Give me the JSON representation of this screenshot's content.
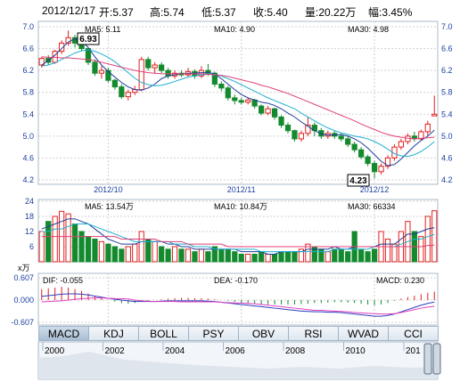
{
  "header": {
    "date": "2012/12/17",
    "open": "开:5.37",
    "high": "高:5.74",
    "low": "低:5.37",
    "close": "收:5.40",
    "volume": "量:20.22万",
    "change": "幅:3.45%"
  },
  "price_panel": {
    "ma5": "MA5: 5.11",
    "ma10": "MA10: 4.90",
    "ma30": "MA30: 4.98",
    "high_marker": "6.93",
    "low_marker": "4.23",
    "y_ticks": [
      "7.0",
      "6.6",
      "6.2",
      "5.8",
      "5.4",
      "5.0",
      "4.6",
      "4.2"
    ],
    "x_ticks": [
      "2012/10",
      "2012/11",
      "2012/12"
    ]
  },
  "volume_panel": {
    "ma5": "MA5: 13.54万",
    "ma10": "MA10: 10.84万",
    "ma30": "MA30: 66334",
    "unit": "x万",
    "y_ticks": [
      "24",
      "18",
      "12",
      "6"
    ]
  },
  "macd_panel": {
    "dif": "DIF: -0.055",
    "dea": "DEA: -0.170",
    "macd": "MACD: 0.230",
    "y_ticks": [
      "0.607",
      "0.000",
      "-0.607"
    ]
  },
  "tabs": [
    "MACD",
    "KDJ",
    "BOLL",
    "PSY",
    "OBV",
    "RSI",
    "WVAD",
    "CCI"
  ],
  "active_tab": "MACD",
  "overview": {
    "x_ticks": [
      "2000",
      "2002",
      "2004",
      "2006",
      "2008",
      "2010",
      "201"
    ]
  },
  "colors": {
    "up": "#e0201e",
    "down": "#148a2e",
    "ma5": "#1c3f9a",
    "ma10": "#20b0d0",
    "ma30": "#e0407a",
    "grid": "#d0d0d0",
    "axis_text": "#1a3fa0"
  },
  "chart_data": [
    {
      "type": "candlestick",
      "title": "",
      "x_ticks": [
        "2012/10",
        "2012/11",
        "2012/12"
      ],
      "ylim": [
        4.2,
        7.0
      ],
      "series": [
        {
          "name": "MA5",
          "values": [
            6.3,
            6.38,
            6.48,
            6.6,
            6.72,
            6.78,
            6.74,
            6.62,
            6.45,
            6.3,
            6.18,
            6.08,
            5.98,
            5.9,
            5.85,
            5.84,
            5.88,
            5.95,
            6.05,
            6.1,
            6.12,
            6.14,
            6.15,
            6.15,
            6.16,
            6.16,
            6.14,
            6.05,
            5.95,
            5.85,
            5.76,
            5.7,
            5.66,
            5.62,
            5.6,
            5.56,
            5.5,
            5.42,
            5.35,
            5.26,
            5.18,
            5.1,
            5.04,
            5.02,
            5.02,
            5.03,
            5.0,
            4.95,
            4.88,
            4.78,
            4.66,
            4.54,
            4.46,
            4.48,
            4.58,
            4.7,
            4.82,
            4.92,
            5.0,
            5.11
          ]
        },
        {
          "name": "MA10",
          "values": [
            6.28,
            6.3,
            6.34,
            6.4,
            6.46,
            6.52,
            6.56,
            6.58,
            6.55,
            6.5,
            6.44,
            6.36,
            6.26,
            6.16,
            6.06,
            5.98,
            5.94,
            5.92,
            5.93,
            5.96,
            6.0,
            6.04,
            6.08,
            6.1,
            6.12,
            6.13,
            6.13,
            6.1,
            6.05,
            6.0,
            5.94,
            5.88,
            5.82,
            5.76,
            5.7,
            5.65,
            5.6,
            5.55,
            5.5,
            5.42,
            5.35,
            5.28,
            5.21,
            5.15,
            5.1,
            5.06,
            5.03,
            5.0,
            4.98,
            4.95,
            4.9,
            4.84,
            4.76,
            4.68,
            4.64,
            4.63,
            4.66,
            4.72,
            4.8,
            4.9
          ]
        },
        {
          "name": "MA30",
          "values": [
            6.45,
            6.44,
            6.44,
            6.43,
            6.43,
            6.42,
            6.41,
            6.4,
            6.38,
            6.35,
            6.32,
            6.29,
            6.26,
            6.23,
            6.2,
            6.18,
            6.16,
            6.15,
            6.14,
            6.14,
            6.14,
            6.14,
            6.14,
            6.14,
            6.14,
            6.13,
            6.12,
            6.11,
            6.09,
            6.06,
            6.03,
            6.0,
            5.97,
            5.93,
            5.9,
            5.86,
            5.82,
            5.78,
            5.73,
            5.68,
            5.63,
            5.58,
            5.53,
            5.48,
            5.43,
            5.38,
            5.33,
            5.28,
            5.22,
            5.17,
            5.12,
            5.07,
            5.03,
            5.0,
            4.98,
            4.96,
            4.95,
            4.96,
            4.97,
            4.98
          ]
        }
      ],
      "candles": [
        [
          6.3,
          6.42,
          6.45,
          6.25
        ],
        [
          6.42,
          6.35,
          6.48,
          6.3
        ],
        [
          6.35,
          6.55,
          6.58,
          6.32
        ],
        [
          6.55,
          6.7,
          6.75,
          6.5
        ],
        [
          6.7,
          6.8,
          6.93,
          6.65
        ],
        [
          6.8,
          6.7,
          6.85,
          6.62
        ],
        [
          6.7,
          6.6,
          6.75,
          6.55
        ],
        [
          6.6,
          6.35,
          6.62,
          6.3
        ],
        [
          6.35,
          6.15,
          6.4,
          6.1
        ],
        [
          6.15,
          6.2,
          6.28,
          6.05
        ],
        [
          6.2,
          6.02,
          6.25,
          5.98
        ],
        [
          6.02,
          5.9,
          6.05,
          5.85
        ],
        [
          5.9,
          5.72,
          5.95,
          5.68
        ],
        [
          5.72,
          5.8,
          5.85,
          5.65
        ],
        [
          5.8,
          5.85,
          5.92,
          5.75
        ],
        [
          5.85,
          6.4,
          6.45,
          5.82
        ],
        [
          6.4,
          6.25,
          6.45,
          6.2
        ],
        [
          6.25,
          6.3,
          6.35,
          6.15
        ],
        [
          6.3,
          6.2,
          6.35,
          6.15
        ],
        [
          6.2,
          6.1,
          6.25,
          6.05
        ],
        [
          6.1,
          6.15,
          6.2,
          6.05
        ],
        [
          6.15,
          6.12,
          6.2,
          6.08
        ],
        [
          6.12,
          6.18,
          6.25,
          6.08
        ],
        [
          6.18,
          6.1,
          6.22,
          6.05
        ],
        [
          6.1,
          6.2,
          6.28,
          6.06
        ],
        [
          6.2,
          6.15,
          6.32,
          6.1
        ],
        [
          6.15,
          5.95,
          6.18,
          5.9
        ],
        [
          5.95,
          5.88,
          6.0,
          5.82
        ],
        [
          5.88,
          5.7,
          5.92,
          5.65
        ],
        [
          5.7,
          5.65,
          5.76,
          5.58
        ],
        [
          5.65,
          5.62,
          5.7,
          5.58
        ],
        [
          5.62,
          5.66,
          5.7,
          5.58
        ],
        [
          5.66,
          5.55,
          5.68,
          5.5
        ],
        [
          5.55,
          5.42,
          5.58,
          5.38
        ],
        [
          5.42,
          5.5,
          5.55,
          5.38
        ],
        [
          5.5,
          5.35,
          5.52,
          5.3
        ],
        [
          5.35,
          5.2,
          5.38,
          5.15
        ],
        [
          5.2,
          5.1,
          5.25,
          5.05
        ],
        [
          5.1,
          4.95,
          5.12,
          4.9
        ],
        [
          4.95,
          5.05,
          5.1,
          4.9
        ],
        [
          5.05,
          5.2,
          5.35,
          5.0
        ],
        [
          5.2,
          5.1,
          5.25,
          5.0
        ],
        [
          5.1,
          5.0,
          5.15,
          4.95
        ],
        [
          5.0,
          5.05,
          5.1,
          4.95
        ],
        [
          5.05,
          5.0,
          5.1,
          4.95
        ],
        [
          5.0,
          4.95,
          5.05,
          4.9
        ],
        [
          4.95,
          4.85,
          5.0,
          4.8
        ],
        [
          4.85,
          4.75,
          4.9,
          4.7
        ],
        [
          4.75,
          4.62,
          4.8,
          4.58
        ],
        [
          4.62,
          4.5,
          4.66,
          4.45
        ],
        [
          4.5,
          4.35,
          4.55,
          4.23
        ],
        [
          4.35,
          4.45,
          4.5,
          4.3
        ],
        [
          4.45,
          4.6,
          4.65,
          4.4
        ],
        [
          4.6,
          4.8,
          4.85,
          4.55
        ],
        [
          4.8,
          4.9,
          4.95,
          4.75
        ],
        [
          4.9,
          5.0,
          5.05,
          4.85
        ],
        [
          5.0,
          4.95,
          5.08,
          4.9
        ],
        [
          4.95,
          5.08,
          5.12,
          4.92
        ],
        [
          5.08,
          5.22,
          5.28,
          5.0
        ],
        [
          5.37,
          5.4,
          5.74,
          5.37
        ]
      ]
    },
    {
      "type": "bar",
      "title": "",
      "ylim": [
        0,
        24
      ],
      "unit": "万",
      "values": [
        12,
        16,
        18,
        20,
        19,
        15,
        12,
        10,
        9,
        8,
        7,
        6,
        5,
        6,
        7,
        12,
        9,
        8,
        6,
        5,
        6,
        5,
        5,
        4,
        5,
        4,
        6,
        5,
        5,
        4,
        3,
        3,
        3,
        4,
        3,
        3,
        4,
        4,
        4,
        5,
        7,
        6,
        5,
        4,
        5,
        5,
        4,
        12,
        5,
        4,
        5,
        12,
        9,
        7,
        12,
        16,
        12,
        10,
        18,
        20.22
      ],
      "series": [
        {
          "name": "MA5",
          "values": [
            13,
            14,
            15,
            16,
            17,
            17,
            16,
            15,
            13,
            11,
            9,
            8,
            7,
            7,
            7,
            8,
            8,
            8,
            8,
            7,
            7,
            6,
            6,
            5,
            5,
            5,
            5,
            5,
            5,
            5,
            4,
            4,
            4,
            4,
            3,
            3,
            4,
            4,
            4,
            4,
            5,
            5,
            5,
            5,
            6,
            5,
            5,
            6,
            6,
            6,
            6,
            7,
            7,
            7,
            9,
            11,
            11,
            12,
            13,
            13.54
          ]
        },
        {
          "name": "MA10",
          "values": [
            12,
            12,
            13,
            13,
            14,
            15,
            15,
            15,
            14,
            13,
            12,
            11,
            10,
            9,
            8,
            8,
            8,
            8,
            8,
            8,
            7,
            7,
            7,
            6,
            6,
            6,
            5,
            5,
            5,
            5,
            5,
            5,
            5,
            4,
            4,
            4,
            4,
            4,
            4,
            4,
            4,
            4,
            4,
            4,
            5,
            5,
            5,
            5,
            5,
            5,
            6,
            6,
            6,
            6,
            7,
            8,
            9,
            9,
            10,
            10.84
          ]
        },
        {
          "name": "MA30",
          "values": [
            10,
            10,
            10,
            10,
            10,
            10,
            10,
            10,
            10,
            10,
            10,
            10,
            9,
            9,
            9,
            9,
            9,
            9,
            8,
            8,
            8,
            8,
            7,
            7,
            7,
            7,
            7,
            7,
            6,
            6,
            6,
            6,
            6,
            6,
            6,
            6,
            6,
            6,
            6,
            6,
            6,
            6,
            6,
            6,
            6,
            6,
            6,
            6,
            6,
            6,
            6,
            6,
            6,
            6,
            6,
            6,
            6,
            6,
            6.5,
            6.63
          ]
        }
      ]
    },
    {
      "type": "bar",
      "title": "",
      "ylim": [
        -0.607,
        0.607
      ],
      "values": [
        0.3,
        0.32,
        0.34,
        0.36,
        0.34,
        0.3,
        0.25,
        0.18,
        0.1,
        0.05,
        0.0,
        -0.04,
        -0.08,
        -0.1,
        -0.08,
        -0.04,
        -0.02,
        0.0,
        0.02,
        0.04,
        0.05,
        0.06,
        0.06,
        0.05,
        0.05,
        0.04,
        0.02,
        0.0,
        -0.02,
        -0.05,
        -0.08,
        -0.1,
        -0.11,
        -0.12,
        -0.12,
        -0.12,
        -0.12,
        -0.12,
        -0.12,
        -0.11,
        -0.1,
        -0.08,
        -0.08,
        -0.07,
        -0.06,
        -0.06,
        -0.07,
        -0.08,
        -0.1,
        -0.12,
        -0.14,
        -0.12,
        -0.08,
        -0.02,
        0.04,
        0.08,
        0.12,
        0.16,
        0.2,
        0.23
      ],
      "series": [
        {
          "name": "DIF",
          "values": [
            0.1,
            0.12,
            0.14,
            0.16,
            0.17,
            0.17,
            0.16,
            0.14,
            0.11,
            0.08,
            0.05,
            0.02,
            0.0,
            -0.02,
            -0.04,
            -0.04,
            -0.04,
            -0.04,
            -0.03,
            -0.02,
            -0.02,
            -0.02,
            -0.02,
            -0.02,
            -0.02,
            -0.03,
            -0.04,
            -0.06,
            -0.08,
            -0.1,
            -0.12,
            -0.14,
            -0.16,
            -0.18,
            -0.2,
            -0.22,
            -0.24,
            -0.26,
            -0.28,
            -0.3,
            -0.31,
            -0.32,
            -0.32,
            -0.33,
            -0.33,
            -0.34,
            -0.36,
            -0.38,
            -0.4,
            -0.42,
            -0.44,
            -0.44,
            -0.42,
            -0.38,
            -0.32,
            -0.26,
            -0.2,
            -0.14,
            -0.09,
            -0.055
          ]
        },
        {
          "name": "DEA",
          "values": [
            -0.05,
            -0.04,
            -0.03,
            -0.02,
            0.0,
            0.02,
            0.04,
            0.05,
            0.06,
            0.06,
            0.05,
            0.04,
            0.04,
            0.03,
            0.0,
            -0.02,
            -0.03,
            -0.04,
            -0.04,
            -0.04,
            -0.04,
            -0.05,
            -0.05,
            -0.05,
            -0.05,
            -0.05,
            -0.05,
            -0.06,
            -0.07,
            -0.08,
            -0.08,
            -0.09,
            -0.1,
            -0.12,
            -0.14,
            -0.16,
            -0.18,
            -0.2,
            -0.22,
            -0.24,
            -0.26,
            -0.28,
            -0.28,
            -0.29,
            -0.3,
            -0.31,
            -0.32,
            -0.34,
            -0.35,
            -0.36,
            -0.37,
            -0.38,
            -0.38,
            -0.37,
            -0.34,
            -0.3,
            -0.26,
            -0.22,
            -0.19,
            -0.17
          ]
        }
      ]
    }
  ]
}
